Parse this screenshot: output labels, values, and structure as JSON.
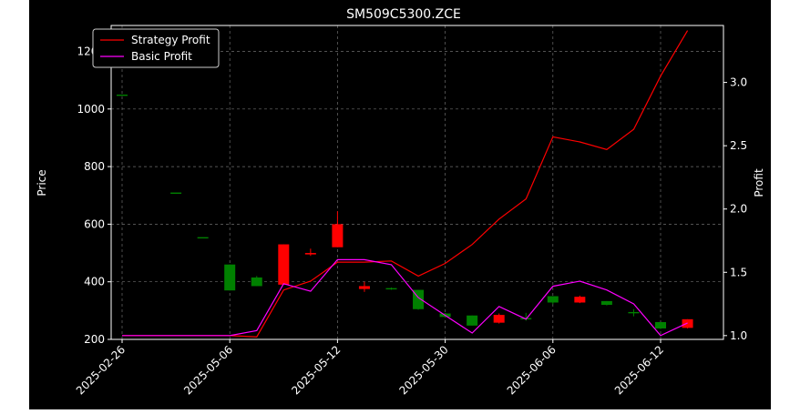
{
  "chart_data": {
    "type": "candlestick+line",
    "title": "SM509C5300.ZCE",
    "ylabel_left": "Price",
    "ylabel_right": "Profit",
    "x_tick_labels": [
      "2025-02-26",
      "2025-05-06",
      "2025-05-12",
      "2025-05-30",
      "2025-06-06",
      "2025-06-12"
    ],
    "x_tick_indices": [
      0,
      4,
      8,
      12,
      16,
      20
    ],
    "ylim_left": [
      200,
      1290
    ],
    "yticks_left": [
      200,
      400,
      600,
      800,
      1000,
      1200
    ],
    "ylim_right": [
      0.97,
      3.45
    ],
    "yticks_right": [
      "1.0",
      "1.5",
      "2.0",
      "2.5",
      "3.0"
    ],
    "grid": true,
    "legend_position": "upper-left",
    "candles": [
      {
        "i": 0,
        "open": 1050,
        "close": 1050,
        "high": 1050,
        "low": 1050
      },
      {
        "i": 2,
        "open": 710,
        "close": 710,
        "high": 710,
        "low": 710
      },
      {
        "i": 3,
        "open": 555,
        "close": 555,
        "high": 555,
        "low": 555
      },
      {
        "i": 4,
        "open": 370,
        "close": 460,
        "high": 460,
        "low": 370
      },
      {
        "i": 5,
        "open": 385,
        "close": 415,
        "high": 420,
        "low": 385
      },
      {
        "i": 6,
        "open": 530,
        "close": 390,
        "high": 530,
        "low": 390
      },
      {
        "i": 7,
        "open": 500,
        "close": 495,
        "high": 515,
        "low": 490
      },
      {
        "i": 8,
        "open": 600,
        "close": 520,
        "high": 645,
        "low": 520
      },
      {
        "i": 9,
        "open": 385,
        "close": 375,
        "high": 400,
        "low": 365
      },
      {
        "i": 10,
        "open": 375,
        "close": 378,
        "high": 380,
        "low": 372
      },
      {
        "i": 11,
        "open": 305,
        "close": 372,
        "high": 372,
        "low": 303
      },
      {
        "i": 12,
        "open": 278,
        "close": 290,
        "high": 292,
        "low": 276
      },
      {
        "i": 13,
        "open": 248,
        "close": 283,
        "high": 283,
        "low": 248
      },
      {
        "i": 14,
        "open": 285,
        "close": 258,
        "high": 290,
        "low": 255
      },
      {
        "i": 15,
        "open": 270,
        "close": 274,
        "high": 292,
        "low": 265
      },
      {
        "i": 16,
        "open": 328,
        "close": 350,
        "high": 350,
        "low": 322
      },
      {
        "i": 17,
        "open": 348,
        "close": 328,
        "high": 352,
        "low": 326
      },
      {
        "i": 18,
        "open": 320,
        "close": 333,
        "high": 333,
        "low": 318
      },
      {
        "i": 19,
        "open": 292,
        "close": 295,
        "high": 305,
        "low": 280
      },
      {
        "i": 20,
        "open": 238,
        "close": 260,
        "high": 260,
        "low": 236
      },
      {
        "i": 21,
        "open": 270,
        "close": 240,
        "high": 270,
        "low": 238
      }
    ],
    "series": [
      {
        "name": "Strategy Profit",
        "color": "#ff0000",
        "x": [
          0,
          1,
          2,
          3,
          4,
          5,
          6,
          7,
          8,
          9,
          10,
          11,
          12,
          13,
          14,
          15,
          16,
          17,
          18,
          19,
          20,
          21
        ],
        "values": [
          1.0,
          1.0,
          1.0,
          1.0,
          1.0,
          0.99,
          1.36,
          1.43,
          1.58,
          1.58,
          1.59,
          1.47,
          1.57,
          1.72,
          1.92,
          2.08,
          2.57,
          2.53,
          2.47,
          2.63,
          3.05,
          3.41
        ]
      },
      {
        "name": "Basic Profit",
        "color": "#ff00ff",
        "x": [
          0,
          1,
          2,
          3,
          4,
          5,
          6,
          7,
          8,
          9,
          10,
          11,
          12,
          13,
          14,
          15,
          16,
          17,
          18,
          19,
          20,
          21
        ],
        "values": [
          1.0,
          1.0,
          1.0,
          1.0,
          1.0,
          1.04,
          1.41,
          1.35,
          1.6,
          1.6,
          1.56,
          1.3,
          1.16,
          1.02,
          1.23,
          1.13,
          1.39,
          1.43,
          1.36,
          1.25,
          1.0,
          1.1
        ]
      }
    ],
    "up_color": "#008000",
    "down_color": "#ff0000"
  }
}
